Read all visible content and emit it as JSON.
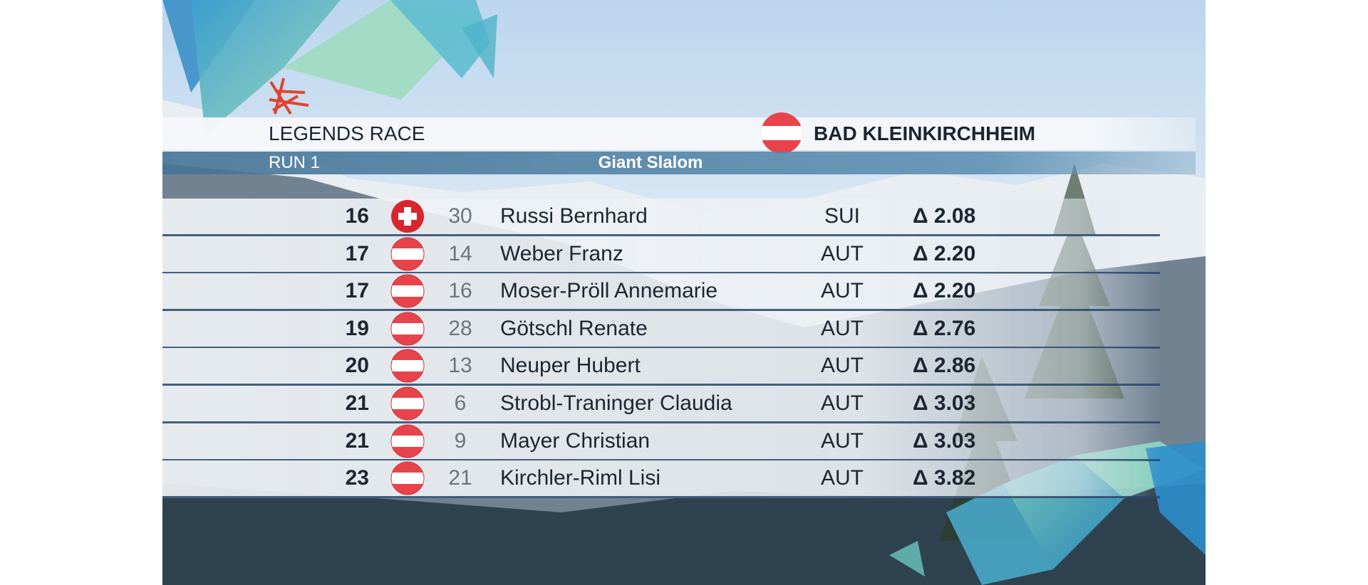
{
  "header": {
    "event": "LEGENDS RACE",
    "run": "RUN 1",
    "discipline": "Giant Slalom",
    "venue": "BAD KLEINKIRCHHEIM"
  },
  "table": {
    "rows": [
      {
        "rank": 16,
        "bib": 30,
        "name": "Russi Bernhard",
        "nation": "SUI",
        "delta": "Δ 2.08"
      },
      {
        "rank": 17,
        "bib": 14,
        "name": "Weber Franz",
        "nation": "AUT",
        "delta": "Δ 2.20"
      },
      {
        "rank": 17,
        "bib": 16,
        "name": "Moser-Pröll Annemarie",
        "nation": "AUT",
        "delta": "Δ 2.20"
      },
      {
        "rank": 19,
        "bib": 28,
        "name": "Götschl Renate",
        "nation": "AUT",
        "delta": "Δ 2.76"
      },
      {
        "rank": 20,
        "bib": 13,
        "name": "Neuper Hubert",
        "nation": "AUT",
        "delta": "Δ 2.86"
      },
      {
        "rank": 21,
        "bib": 6,
        "name": "Strobl-Traninger Claudia",
        "nation": "AUT",
        "delta": "Δ 3.03"
      },
      {
        "rank": 21,
        "bib": 9,
        "name": "Mayer Christian",
        "nation": "AUT",
        "delta": "Δ 3.03"
      },
      {
        "rank": 23,
        "bib": 21,
        "name": "Kirchler-Riml Lisi",
        "nation": "AUT",
        "delta": "Δ 3.82"
      }
    ]
  }
}
